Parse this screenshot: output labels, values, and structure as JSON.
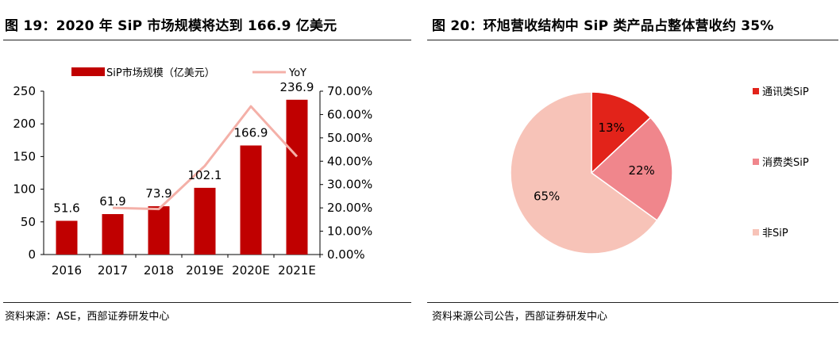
{
  "left_panel": {
    "title": "图 19：2020 年 SiP 市场规模将达到 166.9 亿美元",
    "source": "资料来源：ASE，西部证券研发中心"
  },
  "right_panel": {
    "title": "图 20：环旭营收结构中 SiP 类产品占整体营收约 35%",
    "source": "资料来源公司公告，西部证券研发中心"
  },
  "colors": {
    "bar": "#c00000",
    "line": "#f4b0a8",
    "pie_comm": "#e2231a",
    "pie_consumer": "#f0868c",
    "pie_other": "#f7c3b8"
  },
  "chart_data": [
    {
      "type": "bar",
      "categories": [
        "2016",
        "2017",
        "2018",
        "2019E",
        "2020E",
        "2021E"
      ],
      "series": [
        {
          "name": "SiP市场规模（亿美元）",
          "type": "bar",
          "axis": "left",
          "values": [
            51.6,
            61.9,
            73.9,
            102.1,
            166.9,
            236.9
          ]
        },
        {
          "name": "YoY",
          "type": "line",
          "axis": "right",
          "values": [
            null,
            0.2,
            0.195,
            0.38,
            0.635,
            0.42
          ]
        }
      ],
      "data_labels": [
        "51.6",
        "61.9",
        "73.9",
        "102.1",
        "166.9",
        "236.9"
      ],
      "ylim_left": [
        0,
        250
      ],
      "yticks_left": [
        "0",
        "50",
        "100",
        "150",
        "200",
        "250"
      ],
      "ylim_right": [
        0,
        0.7
      ],
      "yticks_right": [
        "0.00%",
        "10.00%",
        "20.00%",
        "30.00%",
        "40.00%",
        "50.00%",
        "60.00%",
        "70.00%"
      ],
      "legend": "top",
      "grid": false
    },
    {
      "type": "pie",
      "labels": [
        "通讯类SiP",
        "消费类SiP",
        "非SiP"
      ],
      "values": [
        13,
        22,
        65
      ],
      "data_labels": [
        "13%",
        "22%",
        "65%"
      ],
      "legend": "right"
    }
  ]
}
